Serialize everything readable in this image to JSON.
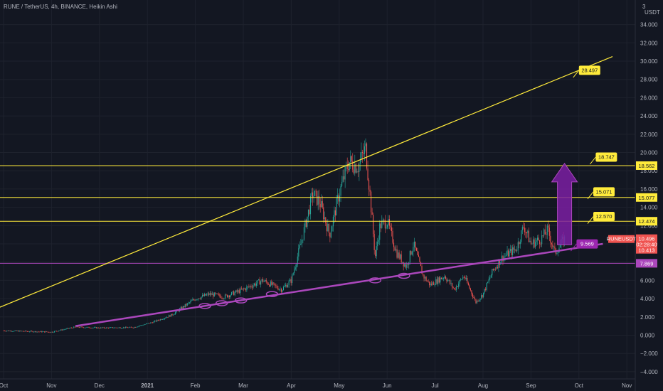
{
  "chart_title": "RUNE / TetherUS, 4h, BINANCE, Heikin Ashi",
  "currency": "USDT",
  "axis_top_label": "3",
  "colors": {
    "background": "#131722",
    "grid": "#1e222d",
    "up": "#26a69a",
    "down": "#ef5350",
    "resistance": "#ffeb3b",
    "trendline": "#ab47bc",
    "text": "#b2b5be"
  },
  "chart_data": {
    "type": "candlestick",
    "title": "RUNE / TetherUS, 4h, BINANCE, Heikin Ashi",
    "ylim": [
      -5,
      37
    ],
    "y_ticks": [
      -4,
      -2,
      0,
      2,
      4,
      6,
      8,
      10,
      12,
      14,
      16,
      18,
      20,
      22,
      24,
      26,
      28,
      30,
      32,
      34
    ],
    "y_tick_labels": [
      "−4.000",
      "−2.000",
      "0.000",
      "2.000",
      "4.000",
      "6.000",
      "8.000",
      "10.000",
      "12.000",
      "14.000",
      "16.000",
      "18.000",
      "20.000",
      "22.000",
      "24.000",
      "26.000",
      "28.000",
      "30.000",
      "32.000",
      "34.000"
    ],
    "x_tick_labels": [
      "Oct",
      "Nov",
      "Dec",
      "2021",
      "Feb",
      "Mar",
      "Apr",
      "May",
      "Jun",
      "Jul",
      "Aug",
      "Sep",
      "Oct",
      "Nov"
    ],
    "price_path": [
      {
        "m": 0.0,
        "p": 0.5
      },
      {
        "m": 1.0,
        "p": 0.35
      },
      {
        "m": 1.5,
        "p": 0.9
      },
      {
        "m": 2.0,
        "p": 0.8
      },
      {
        "m": 2.7,
        "p": 0.85
      },
      {
        "m": 3.1,
        "p": 1.4
      },
      {
        "m": 3.5,
        "p": 2.2
      },
      {
        "m": 4.0,
        "p": 4.0
      },
      {
        "m": 4.3,
        "p": 4.5
      },
      {
        "m": 4.6,
        "p": 4.2
      },
      {
        "m": 5.0,
        "p": 5.0
      },
      {
        "m": 5.4,
        "p": 6.0
      },
      {
        "m": 5.8,
        "p": 5.0
      },
      {
        "m": 6.0,
        "p": 6.0
      },
      {
        "m": 6.2,
        "p": 10.0
      },
      {
        "m": 6.45,
        "p": 15.5
      },
      {
        "m": 6.6,
        "p": 14.5
      },
      {
        "m": 6.8,
        "p": 11.0
      },
      {
        "m": 7.0,
        "p": 15.5
      },
      {
        "m": 7.2,
        "p": 19.0
      },
      {
        "m": 7.4,
        "p": 18.5
      },
      {
        "m": 7.55,
        "p": 20.5
      },
      {
        "m": 7.65,
        "p": 15.0
      },
      {
        "m": 7.75,
        "p": 8.5
      },
      {
        "m": 7.85,
        "p": 12.0
      },
      {
        "m": 8.0,
        "p": 12.5
      },
      {
        "m": 8.2,
        "p": 9.0
      },
      {
        "m": 8.4,
        "p": 7.5
      },
      {
        "m": 8.55,
        "p": 10.0
      },
      {
        "m": 8.75,
        "p": 6.5
      },
      {
        "m": 8.9,
        "p": 5.5
      },
      {
        "m": 9.2,
        "p": 6.5
      },
      {
        "m": 9.4,
        "p": 5.0
      },
      {
        "m": 9.6,
        "p": 6.5
      },
      {
        "m": 9.85,
        "p": 3.6
      },
      {
        "m": 10.0,
        "p": 4.5
      },
      {
        "m": 10.2,
        "p": 7.0
      },
      {
        "m": 10.4,
        "p": 8.5
      },
      {
        "m": 10.7,
        "p": 9.5
      },
      {
        "m": 10.85,
        "p": 12.0
      },
      {
        "m": 11.0,
        "p": 10.0
      },
      {
        "m": 11.2,
        "p": 10.5
      },
      {
        "m": 11.35,
        "p": 11.5
      },
      {
        "m": 11.5,
        "p": 9.0
      },
      {
        "m": 11.65,
        "p": 10.2
      },
      {
        "m": 11.7,
        "p": 10.5
      }
    ],
    "resistance_lines": [
      {
        "value": 18.562,
        "label": "18.562"
      },
      {
        "value": 15.077,
        "label": "15.077"
      },
      {
        "value": 12.474,
        "label": "12.474"
      }
    ],
    "support_line": {
      "value": 7.869,
      "label": "7.869"
    },
    "trendlines": [
      {
        "name": "ascending-yellow",
        "color": "#ffeb3b",
        "points": [
          {
            "m": -0.2,
            "p": 2.8
          },
          {
            "m": 12.7,
            "p": 30.5
          }
        ]
      },
      {
        "name": "ascending-purple",
        "color": "#ab47bc",
        "points": [
          {
            "m": 1.5,
            "p": 1.0
          },
          {
            "m": 12.5,
            "p": 10.0
          }
        ]
      }
    ],
    "callouts": [
      {
        "label": "28.497",
        "m": 12.0,
        "p": 29.5
      },
      {
        "label": "18.747",
        "m": 12.35,
        "p": 20.0
      },
      {
        "label": "15.071",
        "m": 12.3,
        "p": 16.2
      },
      {
        "label": "12.570",
        "m": 12.3,
        "p": 13.5
      },
      {
        "label": "9.569",
        "m": 11.95,
        "p": 10.5
      }
    ],
    "touch_points": [
      {
        "m": 4.2,
        "p": 3.2
      },
      {
        "m": 4.55,
        "p": 3.5
      },
      {
        "m": 4.95,
        "p": 3.8
      },
      {
        "m": 5.6,
        "p": 4.5
      },
      {
        "m": 7.75,
        "p": 6.0
      },
      {
        "m": 8.35,
        "p": 6.5
      }
    ],
    "arrow": {
      "from": 9.9,
      "to": 18.8,
      "m": 11.7
    },
    "current_price": {
      "symbol": "RUNEUSDT",
      "value": "10.496",
      "countdown": "02:28:40",
      "extra": "10.413"
    }
  }
}
